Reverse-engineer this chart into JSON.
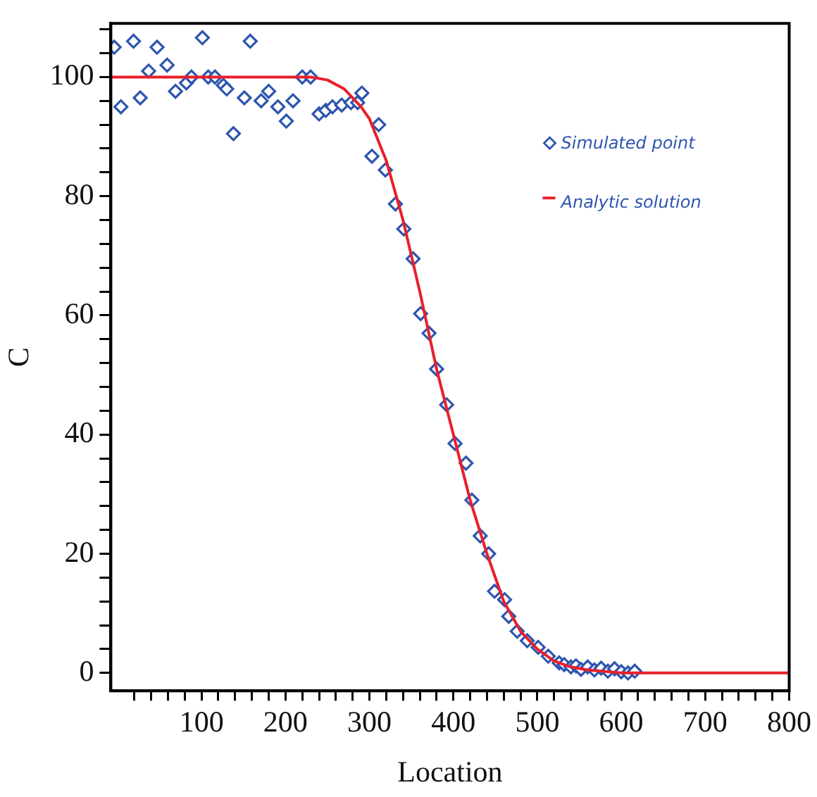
{
  "chart_data": {
    "type": "scatter",
    "xlabel": "Location",
    "ylabel": "C",
    "xlim": [
      -8,
      800
    ],
    "ylim": [
      -3,
      109
    ],
    "xticks": [
      {
        "value": 20,
        "label": null
      },
      {
        "value": 40,
        "label": null
      },
      {
        "value": 60,
        "label": null
      },
      {
        "value": 80,
        "label": null
      },
      100,
      {
        "value": 120,
        "label": null
      },
      {
        "value": 140,
        "label": null
      },
      {
        "value": 160,
        "label": null
      },
      {
        "value": 180,
        "label": null
      },
      200,
      {
        "value": 220,
        "label": null
      },
      {
        "value": 240,
        "label": null
      },
      {
        "value": 260,
        "label": null
      },
      {
        "value": 280,
        "label": null
      },
      300,
      {
        "value": 320,
        "label": null
      },
      {
        "value": 340,
        "label": null
      },
      {
        "value": 360,
        "label": null
      },
      {
        "value": 380,
        "label": null
      },
      400,
      {
        "value": 420,
        "label": null
      },
      {
        "value": 440,
        "label": null
      },
      {
        "value": 460,
        "label": null
      },
      {
        "value": 480,
        "label": null
      },
      500,
      {
        "value": 520,
        "label": null
      },
      {
        "value": 540,
        "label": null
      },
      {
        "value": 560,
        "label": null
      },
      {
        "value": 580,
        "label": null
      },
      600,
      {
        "value": 620,
        "label": null
      },
      {
        "value": 640,
        "label": null
      },
      {
        "value": 660,
        "label": null
      },
      {
        "value": 680,
        "label": null
      },
      700,
      {
        "value": 720,
        "label": null
      },
      {
        "value": 740,
        "label": null
      },
      {
        "value": 760,
        "label": null
      },
      {
        "value": 780,
        "label": null
      },
      800
    ],
    "yticks": [
      0,
      {
        "value": 4,
        "label": null
      },
      {
        "value": 8,
        "label": null
      },
      {
        "value": 12,
        "label": null
      },
      {
        "value": 16,
        "label": null
      },
      20,
      {
        "value": 24,
        "label": null
      },
      {
        "value": 28,
        "label": null
      },
      {
        "value": 32,
        "label": null
      },
      {
        "value": 36,
        "label": null
      },
      40,
      {
        "value": 44,
        "label": null
      },
      {
        "value": 48,
        "label": null
      },
      {
        "value": 52,
        "label": null
      },
      {
        "value": 56,
        "label": null
      },
      60,
      {
        "value": 64,
        "label": null
      },
      {
        "value": 68,
        "label": null
      },
      {
        "value": 72,
        "label": null
      },
      {
        "value": 76,
        "label": null
      },
      80,
      {
        "value": 84,
        "label": null
      },
      {
        "value": 88,
        "label": null
      },
      {
        "value": 92,
        "label": null
      },
      {
        "value": 96,
        "label": null
      },
      100,
      {
        "value": 104,
        "label": null
      },
      {
        "value": 108,
        "label": null
      }
    ],
    "grid": false,
    "legend": "top right",
    "marker": "diamond",
    "series": [
      {
        "name": "Simulated point",
        "color": "#2d55b0",
        "x": [
          -4,
          19,
          4,
          27,
          37,
          47,
          59,
          69,
          82,
          88,
          101,
          108,
          116,
          126,
          130,
          138,
          151,
          158,
          171,
          180,
          191,
          201,
          209,
          220,
          230,
          240,
          248,
          256,
          267,
          278,
          286,
          291,
          303,
          311,
          319,
          331,
          341,
          352,
          361,
          371,
          380,
          392,
          402,
          415,
          422,
          432,
          442,
          449,
          461,
          466,
          476,
          488,
          501,
          513,
          526,
          532,
          540,
          546,
          552,
          560,
          568,
          576,
          584,
          592,
          600,
          608,
          616
        ],
        "values": [
          105,
          106,
          95,
          96.5,
          101,
          105,
          102,
          97.6,
          99,
          100,
          106.6,
          100,
          100,
          98.6,
          98,
          90.5,
          96.5,
          106,
          96,
          97.6,
          95,
          92.6,
          96,
          100,
          100,
          93.8,
          94.4,
          95,
          95.3,
          95.7,
          95.7,
          97.3,
          86.7,
          92,
          84.4,
          78.7,
          74.5,
          69.5,
          60.3,
          57,
          51,
          45,
          38.5,
          35.2,
          29,
          23,
          20,
          13.7,
          12.3,
          9.5,
          7,
          5.4,
          4.3,
          2.8,
          1.7,
          1.4,
          1,
          1.2,
          0.6,
          1,
          0.5,
          0.8,
          0.3,
          0.7,
          0.2,
          0,
          0.3
        ]
      },
      {
        "name": "Analytic solution",
        "type": "line",
        "color": "#e8202a",
        "marker": "none",
        "x": [
          -8,
          230,
          250,
          270,
          290,
          300,
          320,
          340,
          360,
          380,
          400,
          420,
          440,
          460,
          480,
          500,
          520,
          540,
          560,
          600,
          800
        ],
        "values": [
          100,
          100,
          99.5,
          98,
          95,
          93,
          86,
          76,
          64,
          51,
          40,
          29,
          20,
          12,
          7,
          4,
          2,
          1,
          0.5,
          0,
          0
        ]
      }
    ]
  }
}
